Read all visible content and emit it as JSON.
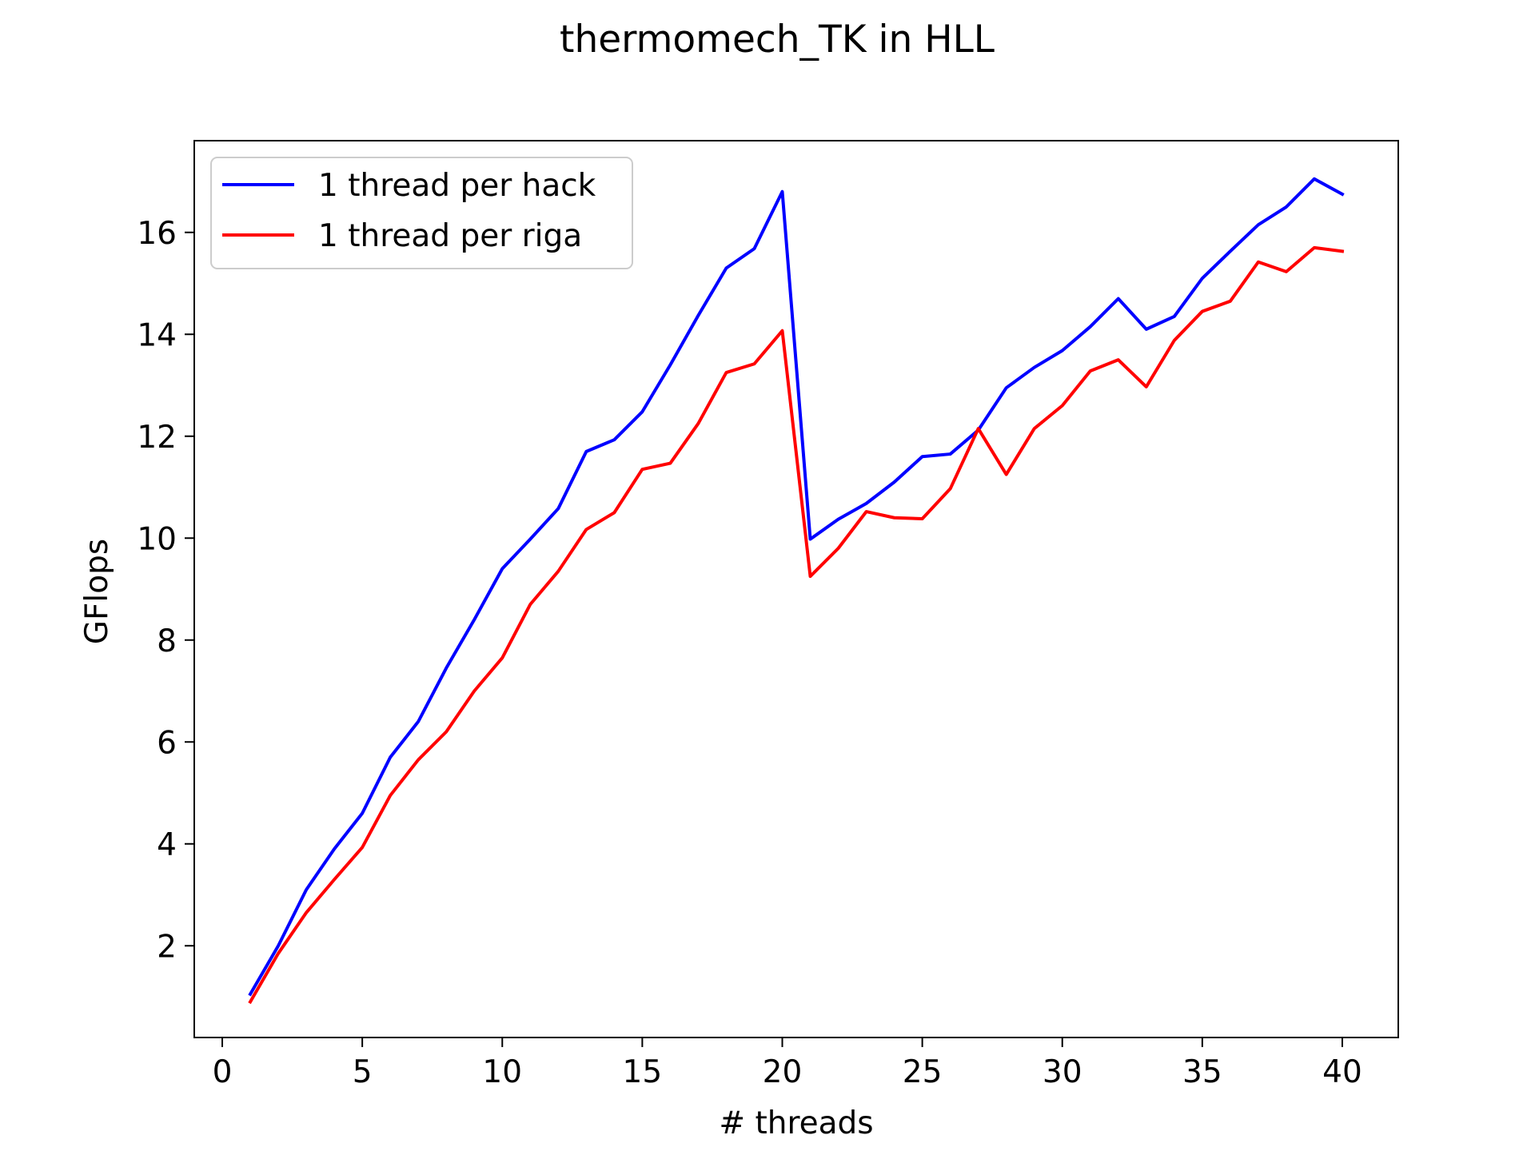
{
  "chart_data": {
    "type": "line",
    "title": "thermomech_TK in HLL",
    "xlabel": "# threads",
    "ylabel": "GFlops",
    "xlim": [
      -1,
      42
    ],
    "ylim": [
      0.2,
      17.8
    ],
    "xticks": [
      0,
      5,
      10,
      15,
      20,
      25,
      30,
      35,
      40
    ],
    "yticks": [
      2,
      4,
      6,
      8,
      10,
      12,
      14,
      16
    ],
    "legend_position": "upper-left",
    "grid": false,
    "x": [
      1,
      2,
      3,
      4,
      5,
      6,
      7,
      8,
      9,
      10,
      11,
      12,
      13,
      14,
      15,
      16,
      17,
      18,
      19,
      20,
      21,
      22,
      23,
      24,
      25,
      26,
      27,
      28,
      29,
      30,
      31,
      32,
      33,
      34,
      35,
      36,
      37,
      38,
      39,
      40
    ],
    "series": [
      {
        "name": "1 thread per hack",
        "color": "#0000ff",
        "values": [
          1.05,
          2.0,
          3.1,
          3.9,
          4.6,
          5.7,
          6.4,
          7.45,
          8.4,
          9.4,
          9.98,
          10.58,
          11.7,
          11.93,
          12.48,
          13.4,
          14.37,
          15.3,
          15.68,
          16.8,
          9.98,
          10.37,
          10.68,
          11.1,
          11.6,
          11.65,
          12.12,
          12.95,
          13.35,
          13.68,
          14.15,
          14.7,
          14.1,
          14.35,
          15.1,
          15.63,
          16.15,
          16.5,
          17.05,
          16.75
        ]
      },
      {
        "name": "1 thread per riga",
        "color": "#ff0000",
        "values": [
          0.9,
          1.85,
          2.65,
          3.3,
          3.93,
          4.95,
          5.65,
          6.2,
          7.0,
          7.65,
          8.7,
          9.35,
          10.17,
          10.5,
          11.35,
          11.47,
          12.25,
          13.25,
          13.42,
          14.07,
          9.25,
          9.8,
          10.52,
          10.4,
          10.38,
          10.97,
          12.15,
          11.25,
          12.15,
          12.6,
          13.28,
          13.5,
          12.97,
          13.88,
          14.45,
          14.65,
          15.42,
          15.23,
          15.7,
          15.63
        ]
      }
    ]
  }
}
